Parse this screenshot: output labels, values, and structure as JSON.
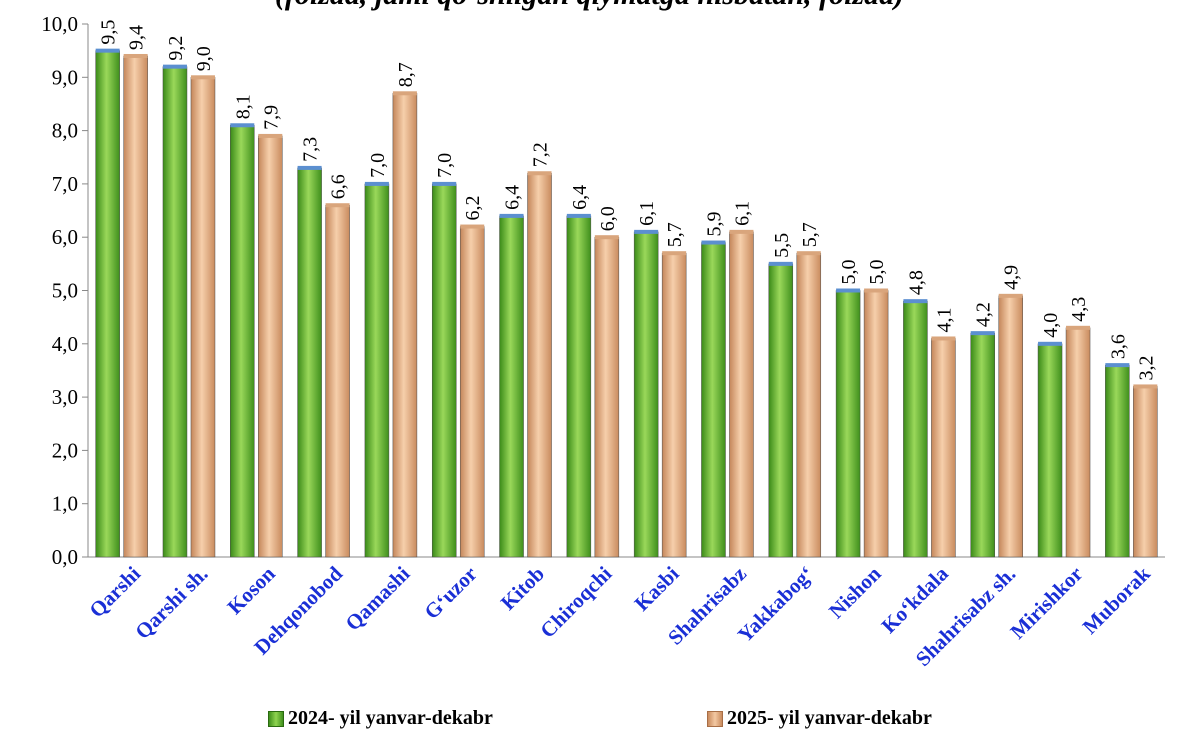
{
  "chart_data": {
    "type": "bar",
    "title": "(foizda, jami qo‘shilgan qiymatga nisbatan, foizda)",
    "categories": [
      "Qarshi",
      "Qarshi sh.",
      "Koson",
      "Dehqonobod",
      "Qamashi",
      "G‘uzor",
      "Kitob",
      "Chiroqchi",
      "Kasbi",
      "Shahrisabz",
      "Yakkabog‘",
      "Nishon",
      "Ko‘kdala",
      "Shahrisabz sh.",
      "Mirishkor",
      "Muborak"
    ],
    "series": [
      {
        "name": "2024- yil yanvar-dekabr",
        "values": [
          9.5,
          9.2,
          8.1,
          7.3,
          7.0,
          7.0,
          6.4,
          6.4,
          6.1,
          5.9,
          5.5,
          5.0,
          4.8,
          4.2,
          4.0,
          3.6
        ]
      },
      {
        "name": "2025- yil yanvar-dekabr",
        "values": [
          9.4,
          9.0,
          7.9,
          6.6,
          8.7,
          6.2,
          7.2,
          6.0,
          5.7,
          6.1,
          5.7,
          5.0,
          4.1,
          4.9,
          4.3,
          3.2
        ]
      }
    ],
    "yticks": [
      "0,0",
      "1,0",
      "2,0",
      "3,0",
      "4,0",
      "5,0",
      "6,0",
      "7,0",
      "8,0",
      "9,0",
      "10,0"
    ],
    "ylim": [
      0,
      10
    ],
    "grid": false,
    "legend": "bottom",
    "colors": {
      "series1": "#6fbf3a",
      "series2": "#e9b48c",
      "category_label": "#1a2fd6"
    }
  }
}
